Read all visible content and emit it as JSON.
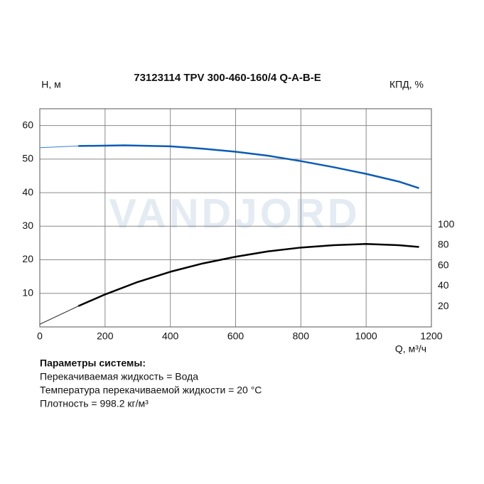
{
  "chart_data": {
    "type": "line",
    "title": "73123114 TPV 300-460-160/4 Q-A-B-E",
    "y_label": "H, м",
    "y2_label": "КПД, %",
    "x_label": "Q, м³/ч",
    "watermark": "VANDJORD",
    "xlim": [
      0,
      1200
    ],
    "xticks": [
      0,
      200,
      400,
      600,
      800,
      1000,
      1200
    ],
    "ylim": [
      0,
      65
    ],
    "yticks": [
      10,
      20,
      30,
      40,
      50,
      60
    ],
    "y2lim": [
      0,
      213.6
    ],
    "y2ticks": [
      20,
      40,
      60,
      80,
      100
    ],
    "grid": true,
    "series": [
      {
        "color": "#3a7fd5",
        "line_width": 1,
        "x": [
          0,
          120
        ],
        "values": [
          53.4,
          53.9
        ]
      },
      {
        "color": "#0b5cb5",
        "line_width": 2.5,
        "x": [
          120,
          260,
          400,
          500,
          600,
          700,
          800,
          900,
          1000,
          1100,
          1160
        ],
        "values": [
          53.9,
          54.1,
          53.8,
          53.1,
          52.2,
          51.0,
          49.4,
          47.6,
          45.6,
          43.3,
          41.4
        ]
      },
      {
        "color": "#333333",
        "line_width": 1,
        "axis": "y2",
        "x": [
          0,
          120
        ],
        "values": [
          2.6,
          20.7
        ]
      },
      {
        "color": "#000000",
        "line_width": 2.5,
        "axis": "y2",
        "x": [
          120,
          200,
          300,
          400,
          500,
          600,
          700,
          800,
          900,
          1000,
          1100,
          1160
        ],
        "values": [
          20.7,
          31.8,
          44.0,
          54.0,
          62.2,
          68.7,
          74.0,
          77.7,
          80.0,
          81.2,
          80.0,
          78.4
        ]
      }
    ]
  },
  "parameters": {
    "title": "Параметры системы:",
    "lines": [
      "Перекачиваемая жидкость = Вода",
      "Температура перекачиваемой жидкости = 20 °C",
      "Плотность = 998.2 кг/м³"
    ]
  }
}
